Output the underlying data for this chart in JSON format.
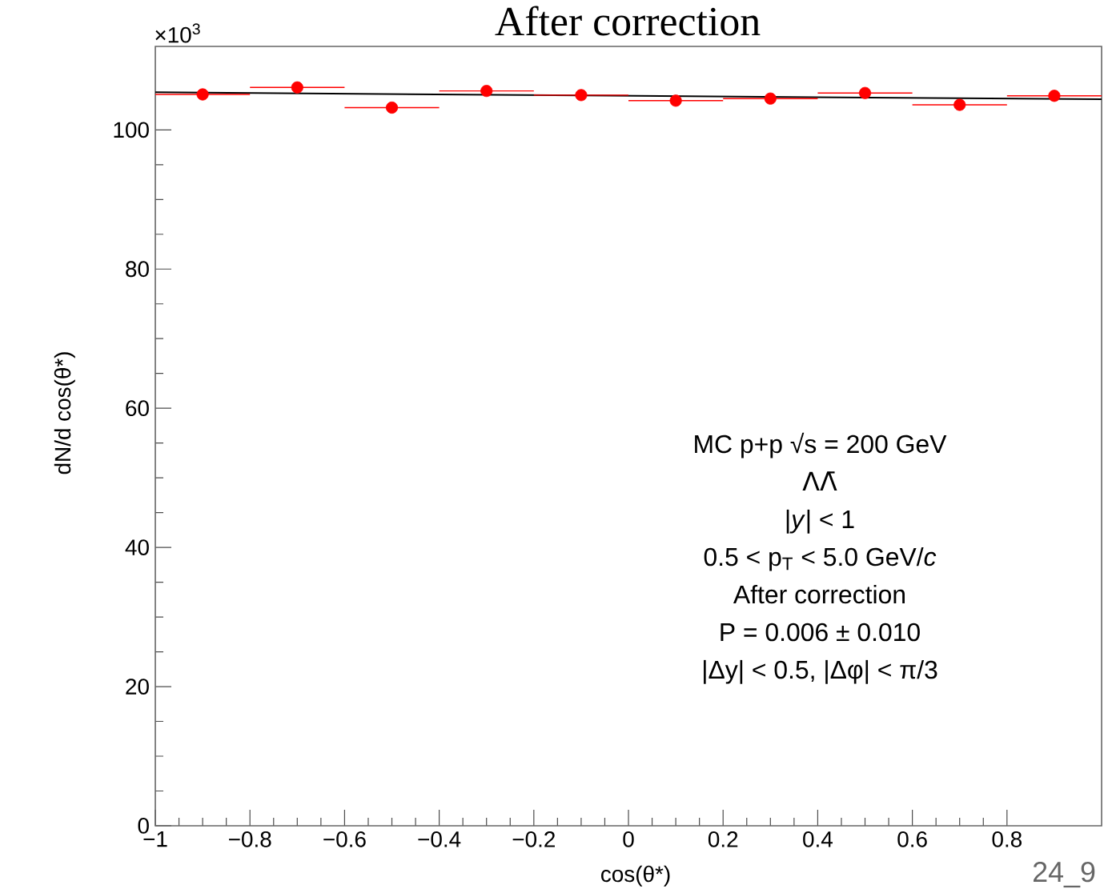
{
  "chart_data": {
    "type": "scatter",
    "title": "After correction",
    "xlabel": "cos(θ*)",
    "ylabel": "dN/d cos(θ*)",
    "annotations": [
      "×10$^{3}$",
      "MC p+p √s = 200 GeV",
      "ΛΛ̄",
      "|*y*| < 1",
      "0.5 < p$_{T}$ < 5.0 GeV/*c*",
      "After correction",
      "P = 0.006 ± 0.010",
      "|Δy| < 0.5, |Δφ| < π/3",
      "24_9"
    ],
    "xlim": [
      -1,
      1
    ],
    "ylim": [
      0,
      112
    ],
    "xticks": [
      {
        "value": -1,
        "label": "−1"
      },
      {
        "value": -0.8,
        "label": "−0.8"
      },
      {
        "value": -0.6,
        "label": "−0.6"
      },
      {
        "value": -0.4,
        "label": "−0.4"
      },
      {
        "value": -0.2,
        "label": "−0.2"
      },
      0,
      0.2,
      0.4,
      0.6,
      0.8
    ],
    "yticks": [
      0,
      20,
      40,
      60,
      80,
      100
    ],
    "grid": false,
    "series": [
      {
        "color": "#ff0000",
        "marker": "circle",
        "x": [
          -0.9,
          -0.7,
          -0.5,
          -0.3,
          -0.1,
          0.1,
          0.3,
          0.5,
          0.7,
          0.9
        ],
        "values": [
          105.1,
          106.1,
          103.2,
          105.6,
          105.0,
          104.2,
          104.5,
          105.3,
          103.6,
          104.9
        ],
        "xerrors": [
          0.1,
          0.1,
          0.1,
          0.1,
          0.1,
          0.1,
          0.1,
          0.1,
          0.1,
          0.1
        ]
      },
      {
        "type": "line",
        "color": "#000000",
        "x": [
          -1,
          1
        ],
        "values": [
          105.4,
          104.4
        ],
        "marker": "none",
        "line_style": "solid"
      }
    ]
  }
}
